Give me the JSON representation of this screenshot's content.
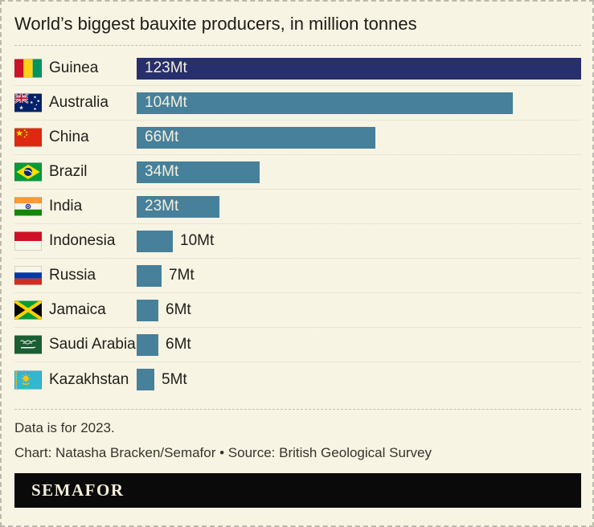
{
  "header": {
    "title": "World’s biggest bauxite producers, in million tonnes"
  },
  "chart_data": {
    "type": "bar",
    "orientation": "horizontal",
    "title": "World’s biggest bauxite producers, in million tonnes",
    "unit": "Mt",
    "categories": [
      "Guinea",
      "Australia",
      "China",
      "Brazil",
      "India",
      "Indonesia",
      "Russia",
      "Jamaica",
      "Saudi Arabia",
      "Kazakhstan"
    ],
    "values": [
      123,
      104,
      66,
      34,
      23,
      10,
      7,
      6,
      6,
      5
    ],
    "value_labels": [
      "123Mt",
      "104Mt",
      "66Mt",
      "34Mt",
      "23Mt",
      "10Mt",
      "7Mt",
      "6Mt",
      "6Mt",
      "5Mt"
    ],
    "flags": [
      "guinea",
      "australia",
      "china",
      "brazil",
      "india",
      "indonesia",
      "russia",
      "jamaica",
      "saudi-arabia",
      "kazakhstan"
    ],
    "highlight_index": 0,
    "xlim": [
      0,
      123
    ],
    "bar_color": "#47809a",
    "highlight_color": "#272f6d",
    "legend": "none",
    "grid": "off"
  },
  "footer": {
    "note": "Data is for 2023.",
    "credit": "Chart: Natasha Bracken/Semafor • Source: British Geological Survey"
  },
  "logo": {
    "wordmark": "SEMAFOR"
  },
  "colors": {
    "background": "#f8f4e3",
    "bar": "#47809a",
    "bar_highlight": "#272f6d",
    "bar_label_inside": "#f3efde",
    "text": "#21201b",
    "separator": "#c3bfae",
    "row_separator": "#dad5c2",
    "frame_border": "#bcb9ad",
    "logo_background": "#0a0a0a",
    "logo_text": "#f5f0da"
  }
}
